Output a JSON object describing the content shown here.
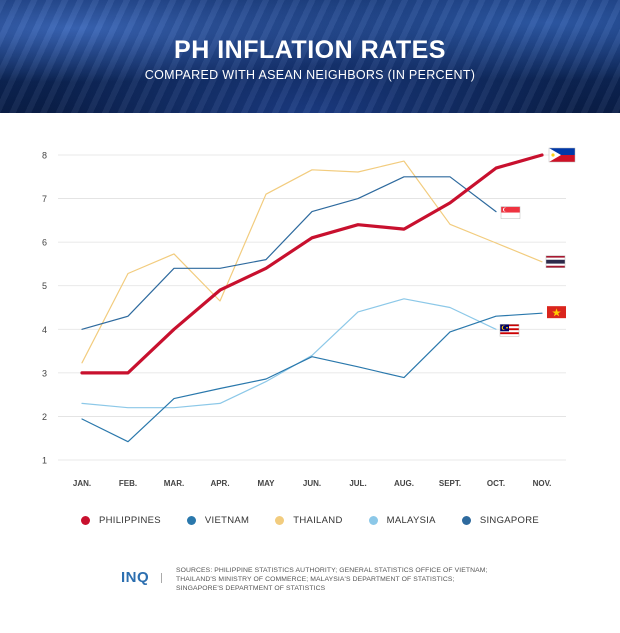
{
  "header": {
    "title": "PH INFLATION RATES",
    "subtitle": "COMPARED WITH ASEAN NEIGHBORS (IN PERCENT)"
  },
  "footer": {
    "logo": "INQ",
    "sources_line1": "SOURCES: PHILIPPINE STATISTICS AUTHORITY; GENERAL STATISTICS OFFICE OF VIETNAM;",
    "sources_line2": "THAILAND'S MINISTRY OF COMMERCE; MALAYSIA'S DEPARTMENT OF STATISTICS;",
    "sources_line3": "SINGAPORE'S DEPARTMENT OF STATISTICS"
  },
  "chart_data": {
    "type": "line",
    "categories": [
      "JAN.",
      "FEB.",
      "MAR.",
      "APR.",
      "MAY",
      "JUN.",
      "JUL.",
      "AUG.",
      "SEPT.",
      "OCT.",
      "NOV."
    ],
    "ylim": [
      1,
      8
    ],
    "yticks": [
      1,
      2,
      3,
      4,
      5,
      6,
      7,
      8
    ],
    "grid": true,
    "legend_position": "bottom",
    "series": [
      {
        "name": "PHILIPPINES",
        "color": "#c8102e",
        "width": 3.2,
        "flag": "philippines-flag-icon",
        "values": [
          3.0,
          3.0,
          4.0,
          4.9,
          5.4,
          6.1,
          6.4,
          6.3,
          6.9,
          7.7,
          8.0
        ]
      },
      {
        "name": "VIETNAM",
        "color": "#2a78ac",
        "width": 1.2,
        "flag": "vietnam-flag-icon",
        "values": [
          1.94,
          1.42,
          2.41,
          2.64,
          2.86,
          3.37,
          3.14,
          2.89,
          3.94,
          4.3,
          4.37
        ]
      },
      {
        "name": "THAILAND",
        "color": "#f2cc7e",
        "width": 1.2,
        "flag": "thailand-flag-icon",
        "values": [
          3.23,
          5.28,
          5.73,
          4.65,
          7.1,
          7.66,
          7.61,
          7.86,
          6.41,
          5.98,
          5.55
        ]
      },
      {
        "name": "MALAYSIA",
        "color": "#8cc8e8",
        "width": 1.2,
        "flag": "malaysia-flag-icon",
        "values": [
          2.3,
          2.2,
          2.2,
          2.3,
          2.8,
          3.4,
          4.4,
          4.7,
          4.5,
          4.0,
          null
        ]
      },
      {
        "name": "SINGAPORE",
        "color": "#2e6a9e",
        "width": 1.2,
        "flag": "singapore-flag-icon",
        "values": [
          4.0,
          4.3,
          5.4,
          5.4,
          5.6,
          6.7,
          7.0,
          7.5,
          7.5,
          6.7,
          null
        ]
      }
    ]
  }
}
